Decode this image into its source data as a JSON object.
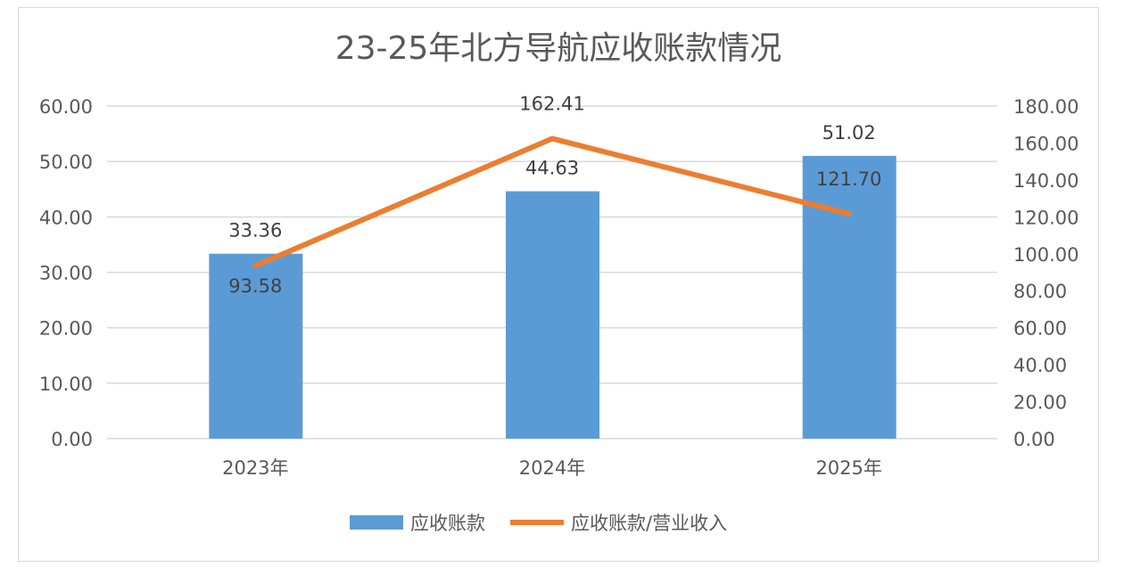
{
  "chart_data": {
    "type": "bar+line",
    "title": "23-25年北方导航应收账款情况",
    "categories": [
      "2023年",
      "2024年",
      "2025年"
    ],
    "series": [
      {
        "name": "应收账款",
        "type": "bar",
        "axis": "left",
        "color": "#5b9bd5",
        "values": [
          33.36,
          44.63,
          51.02
        ],
        "labels": [
          "33.36",
          "44.63",
          "51.02"
        ]
      },
      {
        "name": "应收账款/营业收入",
        "type": "line",
        "axis": "right",
        "color": "#ed7d31",
        "values": [
          93.58,
          162.41,
          121.7
        ],
        "labels": [
          "93.58",
          "162.41",
          "121.70"
        ]
      }
    ],
    "left_axis": {
      "range": [
        0,
        60
      ],
      "ticks": [
        "0.00",
        "10.00",
        "20.00",
        "30.00",
        "40.00",
        "50.00",
        "60.00"
      ]
    },
    "right_axis": {
      "range": [
        0,
        180
      ],
      "ticks": [
        "0.00",
        "20.00",
        "40.00",
        "60.00",
        "80.00",
        "100.00",
        "120.00",
        "140.00",
        "160.00",
        "180.00"
      ]
    },
    "grid": true,
    "legend": "bottom"
  }
}
